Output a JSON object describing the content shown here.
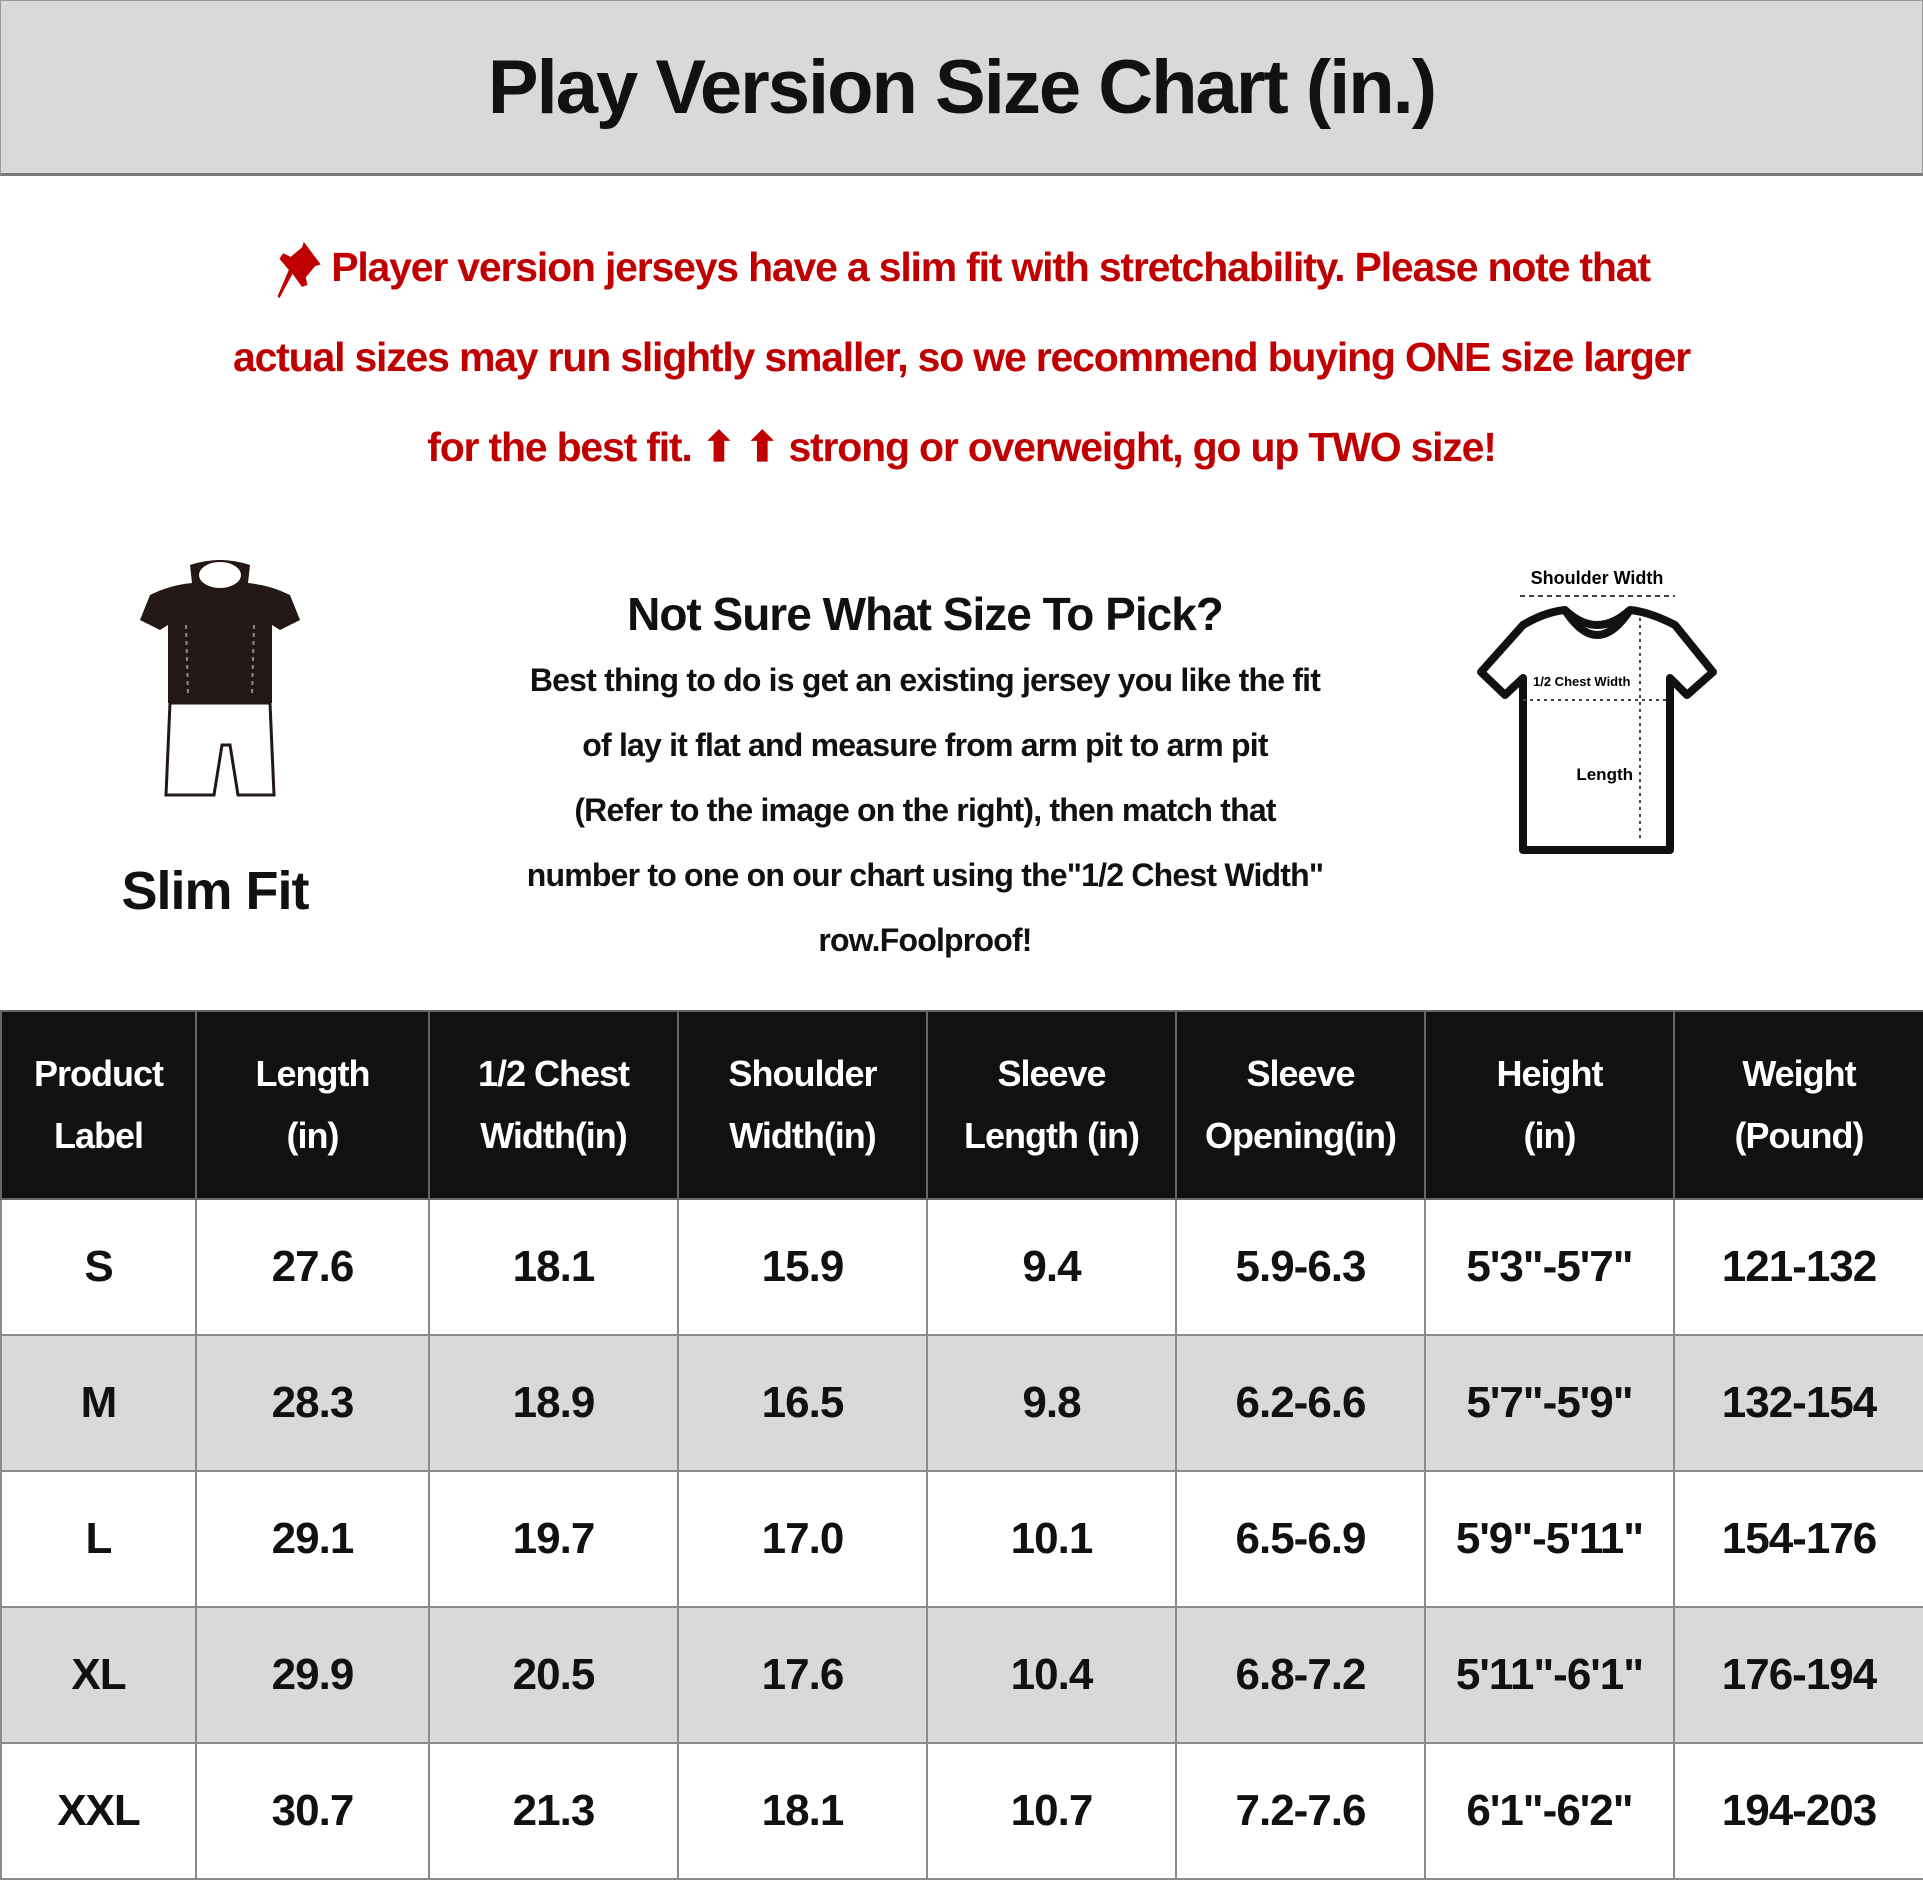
{
  "title": "Play Version Size Chart (in.)",
  "notice": {
    "icon": "pushpin-icon",
    "color": "#c00000",
    "lines": [
      "Player version jerseys have a slim fit with stretchability. Please note that",
      "actual sizes may run slightly smaller, so we recommend buying ONE size larger",
      "for the best fit. ⬆ ⬆ strong or overweight, go up TWO size!"
    ]
  },
  "slim_fit": {
    "label": "Slim Fit",
    "icon": "mannequin-icon"
  },
  "help": {
    "title": "Not Sure What Size To Pick?",
    "lines": [
      "Best thing to do is get an existing jersey you like the fit",
      "of lay it flat and measure from arm pit to arm pit",
      "(Refer to the image on the right), then match that",
      "number to one on our chart using the\"1/2 Chest Width\"",
      "row.Foolproof!"
    ]
  },
  "diagram": {
    "shoulder_label": "Shoulder Width",
    "chest_label": "1/2 Chest Width",
    "length_label": "Length"
  },
  "table": {
    "headers": [
      [
        "Product",
        "Label"
      ],
      [
        "Length",
        "(in)"
      ],
      [
        "1/2 Chest",
        "Width(in)"
      ],
      [
        "Shoulder",
        "Width(in)"
      ],
      [
        "Sleeve",
        "Length (in)"
      ],
      [
        "Sleeve",
        "Opening(in)"
      ],
      [
        "Height",
        "(in)"
      ],
      [
        "Weight",
        "(Pound)"
      ]
    ],
    "rows": [
      [
        "S",
        "27.6",
        "18.1",
        "15.9",
        "9.4",
        "5.9-6.3",
        "5'3\"-5'7\"",
        "121-132"
      ],
      [
        "M",
        "28.3",
        "18.9",
        "16.5",
        "9.8",
        "6.2-6.6",
        "5'7\"-5'9\"",
        "132-154"
      ],
      [
        "L",
        "29.1",
        "19.7",
        "17.0",
        "10.1",
        "6.5-6.9",
        "5'9\"-5'11\"",
        "154-176"
      ],
      [
        "XL",
        "29.9",
        "20.5",
        "17.6",
        "10.4",
        "6.8-7.2",
        "5'11\"-6'1\"",
        "176-194"
      ],
      [
        "XXL",
        "30.7",
        "21.3",
        "18.1",
        "10.7",
        "7.2-7.6",
        "6'1\"-6'2\"",
        "194-203"
      ]
    ]
  }
}
